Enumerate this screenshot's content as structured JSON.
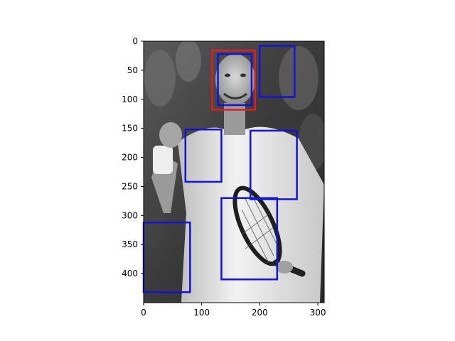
{
  "chart_data": {
    "type": "image-with-bounding-boxes",
    "xlim": [
      0,
      311
    ],
    "ylim": [
      450,
      0
    ],
    "x_ticks": [
      0,
      100,
      200,
      300
    ],
    "y_ticks": [
      0,
      50,
      100,
      150,
      200,
      250,
      300,
      350,
      400
    ],
    "grid": false,
    "image_description": "grayscale photo of a tennis player in a white shirt holding a racket, fist raised",
    "boxes": [
      {
        "label": "",
        "color": "#e01e1e",
        "x0": 118,
        "y0": 16,
        "x1": 192,
        "y1": 118
      },
      {
        "label": "",
        "color": "#1414d2",
        "x0": 128,
        "y0": 22,
        "x1": 186,
        "y1": 110
      },
      {
        "label": "",
        "color": "#1414d2",
        "x0": 200,
        "y0": 8,
        "x1": 260,
        "y1": 96
      },
      {
        "label": "",
        "color": "#1414d2",
        "x0": 72,
        "y0": 152,
        "x1": 134,
        "y1": 242
      },
      {
        "label": "",
        "color": "#1414d2",
        "x0": 184,
        "y0": 154,
        "x1": 264,
        "y1": 272
      },
      {
        "label": "",
        "color": "#1414d2",
        "x0": 134,
        "y0": 270,
        "x1": 230,
        "y1": 410
      },
      {
        "label": "",
        "color": "#1414d2",
        "x0": 0,
        "y0": 312,
        "x1": 80,
        "y1": 432
      }
    ]
  }
}
